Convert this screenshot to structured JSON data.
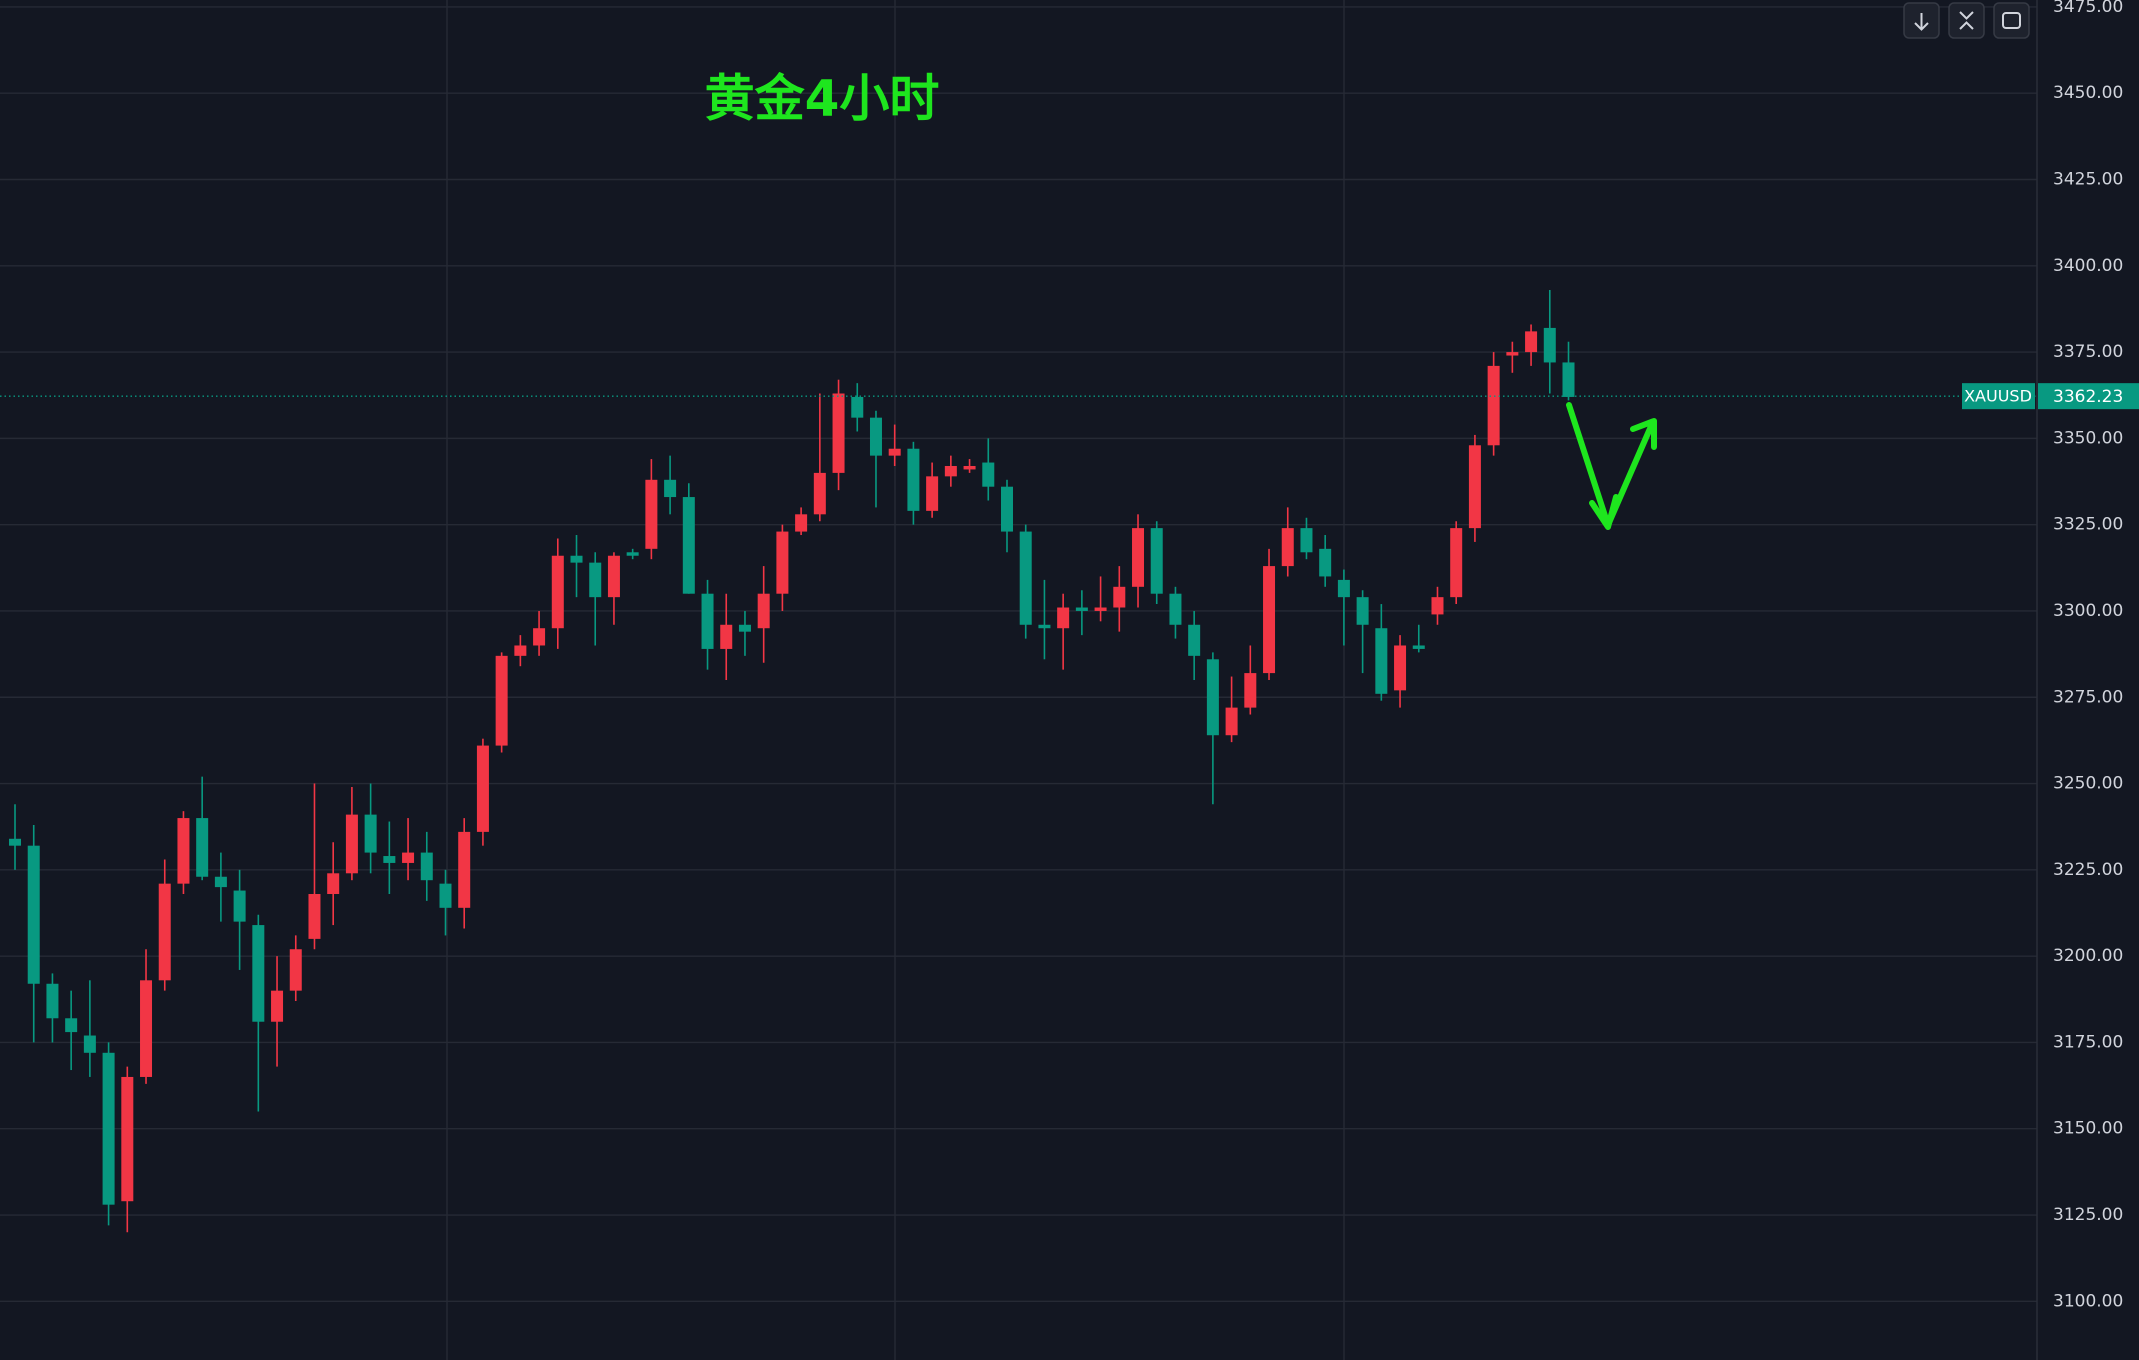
{
  "chart_data": {
    "type": "candlestick",
    "title": "黄金4小时",
    "up_color": "#f23645",
    "down_color": "#089981",
    "grid": true,
    "ylim": [
      3083,
      3477
    ],
    "yticks": [
      {
        "value": 3100,
        "label": "3100.00"
      },
      {
        "value": 3125,
        "label": "3125.00"
      },
      {
        "value": 3150,
        "label": "3150.00"
      },
      {
        "value": 3175,
        "label": "3175.00"
      },
      {
        "value": 3200,
        "label": "3200.00"
      },
      {
        "value": 3225,
        "label": "3225.00"
      },
      {
        "value": 3250,
        "label": "3250.00"
      },
      {
        "value": 3275,
        "label": "3275.00"
      },
      {
        "value": 3300,
        "label": "3300.00"
      },
      {
        "value": 3325,
        "label": "3325.00"
      },
      {
        "value": 3350,
        "label": "3350.00"
      },
      {
        "value": 3375,
        "label": "3375.00"
      },
      {
        "value": 3400,
        "label": "3400.00"
      },
      {
        "value": 3425,
        "label": "3425.00"
      },
      {
        "value": 3450,
        "label": "3450.00"
      },
      {
        "value": 3475,
        "label": "3475.00"
      }
    ],
    "open": [
      3234,
      3232,
      3192,
      3182,
      3177,
      3172,
      3129,
      3165,
      3193,
      3221,
      3240,
      3223,
      3219,
      3209,
      3181,
      3190,
      3205,
      3218,
      3224,
      3241,
      3229,
      3227,
      3230,
      3221,
      3214,
      3236,
      3261,
      3287,
      3290,
      3295,
      3316,
      3314,
      3304,
      3317,
      3318,
      3338,
      3333,
      3305,
      3289,
      3296,
      3295,
      3305,
      3323,
      3328,
      3340,
      3362,
      3356,
      3345,
      3347,
      3329,
      3339,
      3341,
      3343,
      3336,
      3323,
      3296,
      3295,
      3301,
      3300,
      3301,
      3307,
      3324,
      3305,
      3296,
      3286,
      3264,
      3272,
      3282,
      3313,
      3324,
      3318,
      3309,
      3304,
      3295,
      3277,
      3290,
      3299,
      3304,
      3324,
      3348,
      3374,
      3375,
      3382,
      3372
    ],
    "high": [
      3244,
      3238,
      3195,
      3190,
      3193,
      3175,
      3168,
      3202,
      3228,
      3242,
      3252,
      3230,
      3225,
      3212,
      3200,
      3206,
      3250,
      3233,
      3249,
      3250,
      3239,
      3240,
      3236,
      3225,
      3240,
      3263,
      3288,
      3293,
      3300,
      3321,
      3322,
      3317,
      3317,
      3318,
      3344,
      3345,
      3337,
      3309,
      3305,
      3300,
      3313,
      3325,
      3330,
      3363,
      3367,
      3366,
      3358,
      3354,
      3349,
      3343,
      3345,
      3344,
      3350,
      3338,
      3325,
      3309,
      3305,
      3306,
      3310,
      3313,
      3328,
      3326,
      3307,
      3300,
      3288,
      3281,
      3290,
      3318,
      3330,
      3327,
      3322,
      3312,
      3306,
      3302,
      3293,
      3296,
      3307,
      3326,
      3351,
      3375,
      3378,
      3383,
      3393,
      3378
    ],
    "low": [
      3225,
      3175,
      3175,
      3167,
      3165,
      3122,
      3120,
      3163,
      3190,
      3218,
      3222,
      3210,
      3196,
      3155,
      3168,
      3187,
      3202,
      3209,
      3222,
      3224,
      3218,
      3222,
      3216,
      3206,
      3208,
      3232,
      3259,
      3284,
      3287,
      3289,
      3304,
      3290,
      3296,
      3315,
      3315,
      3328,
      3305,
      3283,
      3280,
      3287,
      3285,
      3300,
      3322,
      3326,
      3335,
      3352,
      3330,
      3342,
      3325,
      3327,
      3336,
      3340,
      3332,
      3317,
      3292,
      3286,
      3283,
      3293,
      3297,
      3294,
      3301,
      3302,
      3292,
      3280,
      3244,
      3262,
      3270,
      3280,
      3310,
      3315,
      3307,
      3290,
      3282,
      3274,
      3272,
      3288,
      3296,
      3302,
      3320,
      3345,
      3369,
      3371,
      3363,
      3361
    ],
    "close": [
      3232,
      3192,
      3182,
      3178,
      3172,
      3128,
      3165,
      3193,
      3221,
      3240,
      3223,
      3220,
      3210,
      3181,
      3190,
      3202,
      3218,
      3224,
      3241,
      3230,
      3227,
      3230,
      3222,
      3214,
      3236,
      3261,
      3287,
      3290,
      3295,
      3316,
      3314,
      3304,
      3316,
      3316,
      3338,
      3333,
      3305,
      3289,
      3296,
      3294,
      3305,
      3323,
      3328,
      3340,
      3363,
      3356,
      3345,
      3347,
      3329,
      3339,
      3342,
      3342,
      3336,
      3323,
      3296,
      3295,
      3301,
      3300,
      3301,
      3307,
      3324,
      3305,
      3296,
      3287,
      3264,
      3272,
      3282,
      3313,
      3324,
      3317,
      3310,
      3304,
      3296,
      3276,
      3290,
      3289,
      3304,
      3324,
      3348,
      3371,
      3375,
      3381,
      3372,
      3362
    ],
    "price_label": {
      "symbol": "XAUUSD",
      "value": 3362.23
    }
  }
}
